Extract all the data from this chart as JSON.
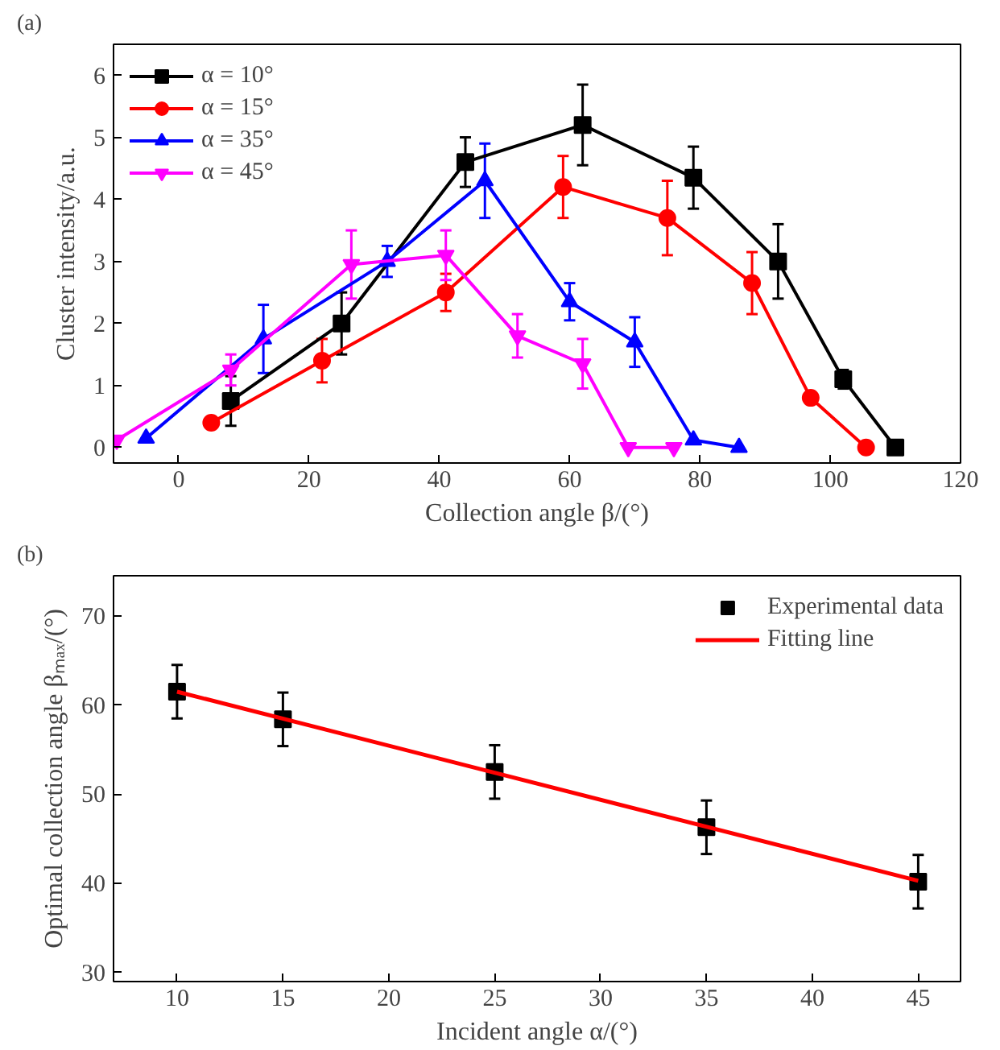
{
  "chart_data": [
    {
      "type": "line",
      "xlabel": "Collection angle β/(°)",
      "ylabel": "Cluster intensity/a.u.",
      "annotations": [
        "(a)"
      ],
      "xlim": [
        -10,
        120
      ],
      "xticks": [
        0,
        20,
        40,
        60,
        80,
        100,
        120
      ],
      "ylim": [
        -0.25,
        6.5
      ],
      "yticks": [
        0,
        1,
        2,
        3,
        4,
        5,
        6
      ],
      "grid": false,
      "legend": "top left",
      "line_style": "solid",
      "series": [
        {
          "name": "α = 10°",
          "color": "#000000",
          "marker": "square",
          "x": [
            8,
            25,
            44,
            62,
            79,
            92,
            102,
            110
          ],
          "values": [
            0.75,
            2.0,
            4.6,
            5.2,
            4.35,
            3.0,
            1.1,
            0
          ],
          "errors": [
            0.4,
            0.5,
            0.4,
            0.65,
            0.5,
            0.6,
            0.15,
            null
          ]
        },
        {
          "name": "α = 15°",
          "color": "#ff0000",
          "marker": "circle",
          "x": [
            5,
            22,
            41,
            59,
            75,
            88,
            97,
            105.5
          ],
          "values": [
            0.4,
            1.4,
            2.5,
            4.2,
            3.7,
            2.65,
            0.8,
            0
          ],
          "errors": [
            null,
            0.35,
            0.3,
            0.5,
            0.6,
            0.5,
            null,
            null
          ]
        },
        {
          "name": "α = 35°",
          "color": "#0000ff",
          "marker": "triangle",
          "x": [
            -5,
            13,
            32,
            47,
            60,
            70,
            79,
            86
          ],
          "values": [
            0.15,
            1.75,
            3.0,
            4.3,
            2.35,
            1.7,
            0.12,
            0
          ],
          "errors": [
            null,
            0.55,
            0.25,
            0.6,
            0.3,
            0.4,
            null,
            null
          ]
        },
        {
          "name": "α = 45°",
          "color": "#ff00ff",
          "marker": "triangle_down",
          "x": [
            -9.5,
            8,
            26.5,
            41,
            52,
            62,
            69,
            76
          ],
          "values": [
            0.12,
            1.25,
            2.95,
            3.1,
            1.8,
            1.35,
            0,
            0
          ],
          "errors": [
            null,
            0.25,
            0.55,
            0.4,
            0.35,
            0.4,
            null,
            null
          ]
        }
      ]
    },
    {
      "type": "scatter",
      "xlabel": "Incident angle α/(°)",
      "ylabel": "Optimal collection angle βₘₐₓ/(°)",
      "annotations": [
        "(b)"
      ],
      "xlim": [
        7,
        47
      ],
      "xticks": [
        10,
        15,
        20,
        25,
        30,
        35,
        40,
        45
      ],
      "ylim": [
        29,
        74.5
      ],
      "yticks": [
        30,
        40,
        50,
        60,
        70
      ],
      "grid": false,
      "legend": "top right",
      "series": [
        {
          "name": "Experimental data",
          "type": "scatter",
          "color": "#000000",
          "marker": "square",
          "x": [
            10,
            15,
            25,
            35,
            45
          ],
          "values": [
            61.5,
            58.4,
            52.5,
            46.3,
            40.2
          ],
          "errors": [
            3,
            3,
            3,
            3,
            3
          ]
        },
        {
          "name": "Fitting line",
          "type": "line",
          "color": "#ff0000",
          "marker": "none",
          "x": [
            10,
            45
          ],
          "values": [
            61.5,
            40.3
          ]
        }
      ]
    }
  ]
}
